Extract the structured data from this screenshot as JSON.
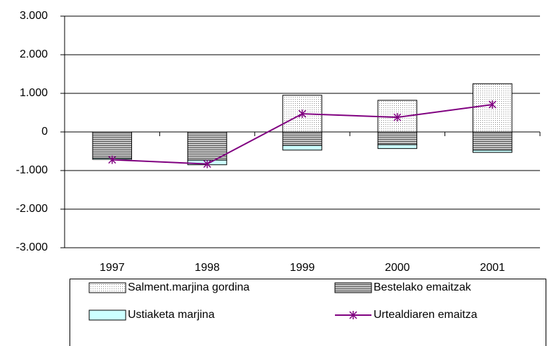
{
  "chart_data": {
    "type": "stacked-bar-line",
    "categories": [
      "1997",
      "1998",
      "1999",
      "2000",
      "2001"
    ],
    "series": [
      {
        "name": "Salment.marjina gordina",
        "color": "#c0c0c0",
        "pattern": "dots",
        "values": [
          0,
          0,
          950,
          820,
          1250
        ]
      },
      {
        "name": "Bestelako emaitzak",
        "color": "#808080",
        "pattern": "stripes",
        "values": [
          -680,
          -730,
          -350,
          -330,
          -470
        ]
      },
      {
        "name": "Ustiaketa marjina",
        "color": "#ccffff",
        "pattern": "solid",
        "values": [
          -30,
          -120,
          -120,
          -100,
          -60
        ]
      },
      {
        "name": "Urtealdiaren emaitza",
        "color": "#800080",
        "kind": "line",
        "values": [
          -720,
          -830,
          470,
          380,
          710
        ]
      }
    ],
    "ylim": [
      -3000,
      3000
    ],
    "yticks": [
      {
        "value": -3000,
        "label": "-3.000"
      },
      {
        "value": -2000,
        "label": "-2.000"
      },
      {
        "value": -1000,
        "label": "-1.000"
      },
      0,
      {
        "value": 1000,
        "label": "1.000"
      },
      {
        "value": 2000,
        "label": "2.000"
      },
      {
        "value": 3000,
        "label": "3.000"
      }
    ],
    "grid": true,
    "legend": "bottom"
  }
}
